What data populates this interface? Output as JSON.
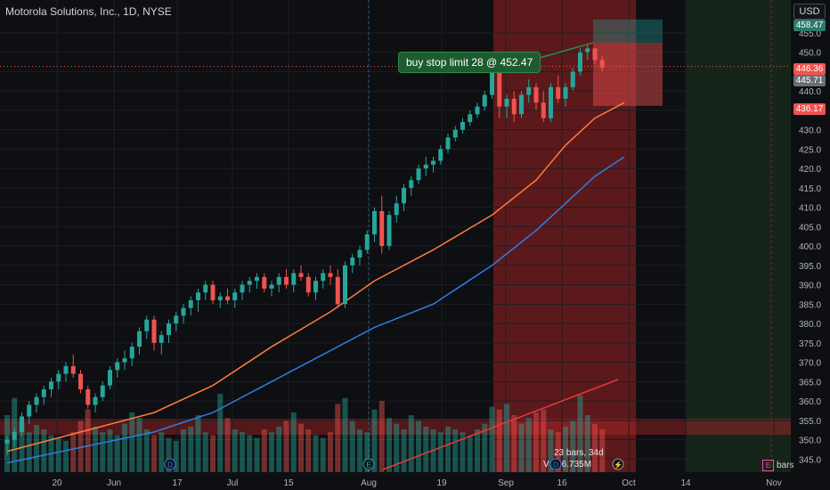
{
  "header": {
    "title": "Motorola Solutions, Inc., 1D, NYSE",
    "currency": "USD"
  },
  "order": {
    "label": "buy stop limit 28 @ 452.47"
  },
  "price_tags": {
    "top": "458.47",
    "last": "446.36",
    "current": "445.71",
    "stop": "436.17"
  },
  "measure": {
    "bars_text": "23 bars, 34d",
    "volume_text": "6.735M"
  },
  "toolbar": {
    "bars_label": "bars",
    "e_icon": "E"
  },
  "colors": {
    "up": "#26a69a",
    "down": "#ef5350",
    "ma_fast": "#ff7b3d",
    "ma_slow": "#2f7de1",
    "trend": "#e03c3c"
  },
  "chart_data": {
    "type": "candlestick",
    "title": "Motorola Solutions, Inc., 1D, NYSE",
    "ylim": [
      343,
      460
    ],
    "y_ticks": [
      345,
      350,
      355,
      360,
      365,
      370,
      375,
      380,
      385,
      390,
      395,
      400,
      405,
      410,
      415,
      420,
      425,
      430,
      435,
      440,
      445,
      450,
      455
    ],
    "x_ticks": [
      "20",
      "Jun",
      "17",
      "Jul",
      "15",
      "Aug",
      "19",
      "Sep",
      "16",
      "Oct",
      "14",
      "Nov"
    ],
    "ohlc": [
      [
        349,
        351,
        346,
        350
      ],
      [
        350,
        353,
        348,
        352
      ],
      [
        352,
        357,
        351,
        356
      ],
      [
        356,
        360,
        354,
        359
      ],
      [
        359,
        362,
        357,
        361
      ],
      [
        361,
        364,
        359,
        363
      ],
      [
        363,
        366,
        361,
        365
      ],
      [
        365,
        368,
        363,
        367
      ],
      [
        367,
        370,
        365,
        369
      ],
      [
        369,
        372,
        366,
        367
      ],
      [
        367,
        368,
        362,
        363
      ],
      [
        363,
        364,
        358,
        359
      ],
      [
        359,
        362,
        357,
        361
      ],
      [
        361,
        365,
        360,
        364
      ],
      [
        364,
        369,
        363,
        368
      ],
      [
        368,
        371,
        366,
        370
      ],
      [
        370,
        373,
        368,
        371
      ],
      [
        371,
        375,
        369,
        374
      ],
      [
        374,
        379,
        372,
        378
      ],
      [
        378,
        382,
        376,
        381
      ],
      [
        381,
        382,
        373,
        375
      ],
      [
        375,
        378,
        372,
        377
      ],
      [
        377,
        381,
        375,
        380
      ],
      [
        380,
        383,
        378,
        382
      ],
      [
        382,
        385,
        380,
        384
      ],
      [
        384,
        387,
        382,
        386
      ],
      [
        386,
        389,
        383,
        388
      ],
      [
        388,
        391,
        386,
        390
      ],
      [
        390,
        391,
        385,
        386
      ],
      [
        386,
        388,
        384,
        387
      ],
      [
        387,
        389,
        385,
        386
      ],
      [
        386,
        389,
        384,
        388
      ],
      [
        388,
        391,
        386,
        390
      ],
      [
        390,
        392,
        388,
        391
      ],
      [
        391,
        393,
        389,
        392
      ],
      [
        392,
        393,
        388,
        389
      ],
      [
        389,
        391,
        387,
        390
      ],
      [
        390,
        393,
        388,
        392
      ],
      [
        392,
        394,
        389,
        390
      ],
      [
        390,
        394,
        388,
        393
      ],
      [
        393,
        395,
        391,
        392
      ],
      [
        392,
        393,
        387,
        388
      ],
      [
        388,
        392,
        386,
        391
      ],
      [
        391,
        394,
        389,
        393
      ],
      [
        393,
        395,
        390,
        392
      ],
      [
        392,
        394,
        384,
        385
      ],
      [
        385,
        396,
        384,
        395
      ],
      [
        395,
        398,
        393,
        397
      ],
      [
        397,
        400,
        395,
        399
      ],
      [
        399,
        404,
        398,
        403
      ],
      [
        403,
        410,
        401,
        409
      ],
      [
        409,
        413,
        398,
        400
      ],
      [
        400,
        409,
        399,
        408
      ],
      [
        408,
        413,
        406,
        411
      ],
      [
        411,
        416,
        409,
        415
      ],
      [
        415,
        418,
        413,
        417
      ],
      [
        417,
        421,
        416,
        420
      ],
      [
        420,
        423,
        418,
        421
      ],
      [
        421,
        423,
        419,
        422
      ],
      [
        422,
        426,
        421,
        425
      ],
      [
        425,
        429,
        424,
        428
      ],
      [
        428,
        431,
        427,
        430
      ],
      [
        430,
        433,
        429,
        432
      ],
      [
        432,
        435,
        431,
        434
      ],
      [
        434,
        437,
        433,
        436
      ],
      [
        436,
        440,
        435,
        439
      ],
      [
        439,
        446,
        438,
        445
      ],
      [
        445,
        446,
        433,
        436
      ],
      [
        436,
        439,
        433,
        438
      ],
      [
        438,
        440,
        432,
        434
      ],
      [
        434,
        440,
        433,
        439
      ],
      [
        439,
        443,
        437,
        441
      ],
      [
        441,
        442,
        435,
        437
      ],
      [
        437,
        440,
        432,
        433
      ],
      [
        433,
        442,
        432,
        441
      ],
      [
        441,
        444,
        437,
        438
      ],
      [
        438,
        442,
        436,
        441
      ],
      [
        441,
        446,
        440,
        445
      ],
      [
        445,
        451,
        444,
        450
      ],
      [
        450,
        452,
        448,
        451
      ],
      [
        451,
        451,
        447,
        448
      ],
      [
        448,
        449,
        445,
        446
      ]
    ],
    "ma_fast": [
      [
        0,
        347
      ],
      [
        10,
        352
      ],
      [
        20,
        357
      ],
      [
        28,
        364
      ],
      [
        36,
        374
      ],
      [
        44,
        383
      ],
      [
        50,
        391
      ],
      [
        58,
        399
      ],
      [
        66,
        408
      ],
      [
        72,
        417
      ],
      [
        76,
        426
      ],
      [
        80,
        433
      ],
      [
        84,
        437
      ]
    ],
    "ma_slow": [
      [
        0,
        344
      ],
      [
        10,
        348
      ],
      [
        20,
        352
      ],
      [
        28,
        357
      ],
      [
        36,
        365
      ],
      [
        44,
        373
      ],
      [
        50,
        379
      ],
      [
        58,
        385
      ],
      [
        66,
        395
      ],
      [
        72,
        404
      ],
      [
        76,
        411
      ],
      [
        80,
        418
      ],
      [
        84,
        423
      ]
    ],
    "volume": [
      40,
      52,
      35,
      28,
      33,
      30,
      26,
      24,
      22,
      28,
      36,
      44,
      32,
      28,
      30,
      26,
      34,
      42,
      38,
      30,
      26,
      28,
      24,
      22,
      30,
      32,
      40,
      28,
      26,
      55,
      38,
      30,
      28,
      26,
      24,
      30,
      28,
      32,
      36,
      42,
      34,
      30,
      26,
      24,
      28,
      48,
      52,
      36,
      30,
      28,
      44,
      50,
      38,
      34,
      30,
      40,
      36,
      32,
      30,
      28,
      32,
      30,
      28,
      26,
      30,
      34,
      46,
      44,
      48,
      40,
      34,
      38,
      42,
      44,
      30,
      28,
      32,
      36,
      54,
      40,
      34,
      30
    ],
    "order": {
      "price": 452.47,
      "stop": 436.17,
      "target": 458.47
    }
  }
}
